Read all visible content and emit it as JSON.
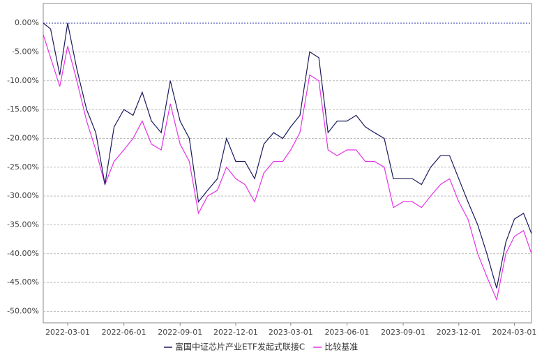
{
  "chart_data": {
    "type": "line",
    "x": [
      "2022-01-20",
      "2022-02-01",
      "2022-02-16",
      "2022-03-01",
      "2022-03-16",
      "2022-04-01",
      "2022-04-16",
      "2022-05-01",
      "2022-05-16",
      "2022-06-01",
      "2022-06-16",
      "2022-07-01",
      "2022-07-16",
      "2022-08-01",
      "2022-08-16",
      "2022-09-01",
      "2022-09-16",
      "2022-10-01",
      "2022-10-16",
      "2022-11-01",
      "2022-11-16",
      "2022-12-01",
      "2022-12-16",
      "2023-01-01",
      "2023-01-16",
      "2023-02-01",
      "2023-02-16",
      "2023-03-01",
      "2023-03-16",
      "2023-04-01",
      "2023-04-16",
      "2023-05-01",
      "2023-05-16",
      "2023-06-01",
      "2023-06-16",
      "2023-07-01",
      "2023-07-16",
      "2023-08-01",
      "2023-08-16",
      "2023-09-01",
      "2023-09-16",
      "2023-10-01",
      "2023-10-16",
      "2023-11-01",
      "2023-11-16",
      "2023-12-01",
      "2023-12-16",
      "2024-01-01",
      "2024-01-16",
      "2024-02-01",
      "2024-02-16",
      "2024-03-01",
      "2024-03-16",
      "2024-03-29"
    ],
    "series": [
      {
        "name": "富国中证芯片产业ETF发起式联接C",
        "color": "#1a1a5e",
        "values": [
          0,
          -1,
          -9,
          0,
          -8,
          -15,
          -19,
          -28,
          -18,
          -15,
          -16,
          -12,
          -17,
          -19,
          -10,
          -17,
          -20,
          -31,
          -29,
          -27,
          -20,
          -24,
          -24,
          -27,
          -21,
          -19,
          -20,
          -18,
          -16,
          -5,
          -6,
          -19,
          -17,
          -17,
          -16,
          -18,
          -19,
          -20,
          -27,
          -27,
          -27,
          -28,
          -25,
          -23,
          -23,
          -27,
          -31,
          -35,
          -40,
          -46,
          -38,
          -34,
          -33,
          -36.5
        ]
      },
      {
        "name": "比较基准",
        "color": "#e633e6",
        "values": [
          -2,
          -6,
          -11,
          -4,
          -10,
          -17,
          -22,
          -28,
          -24,
          -22,
          -20,
          -17,
          -21,
          -22,
          -14,
          -21,
          -24,
          -33,
          -30,
          -29,
          -25,
          -27,
          -28,
          -31,
          -26,
          -24,
          -24,
          -22,
          -19,
          -9,
          -10,
          -22,
          -23,
          -22,
          -22,
          -24,
          -24,
          -25,
          -32,
          -31,
          -31,
          -32,
          -30,
          -28,
          -27,
          -31,
          -34,
          -40,
          -44,
          -48,
          -40,
          -37,
          -36,
          -40
        ]
      }
    ],
    "xlim": [
      "2022-01-20",
      "2024-03-29"
    ],
    "xticks": [
      "2022-03-01",
      "2022-06-01",
      "2022-09-01",
      "2022-12-01",
      "2023-03-01",
      "2023-06-01",
      "2023-09-01",
      "2023-12-01",
      "2024-03-01"
    ],
    "ylim": [
      -52,
      3.4
    ],
    "yticks": [
      {
        "value": 0,
        "label": "0.00%"
      },
      {
        "value": -5,
        "label": "-5.00%"
      },
      {
        "value": -10,
        "label": "-10.00%"
      },
      {
        "value": -15,
        "label": "-15.00%"
      },
      {
        "value": -20,
        "label": "-20.00%"
      },
      {
        "value": -25,
        "label": "-25.00%"
      },
      {
        "value": -30,
        "label": "-30.00%"
      },
      {
        "value": -35,
        "label": "-35.00%"
      },
      {
        "value": -40,
        "label": "-40.00%"
      },
      {
        "value": -45,
        "label": "-45.00%"
      },
      {
        "value": -50,
        "label": "-50.00%"
      }
    ],
    "grid": true,
    "legend": "bottom"
  }
}
